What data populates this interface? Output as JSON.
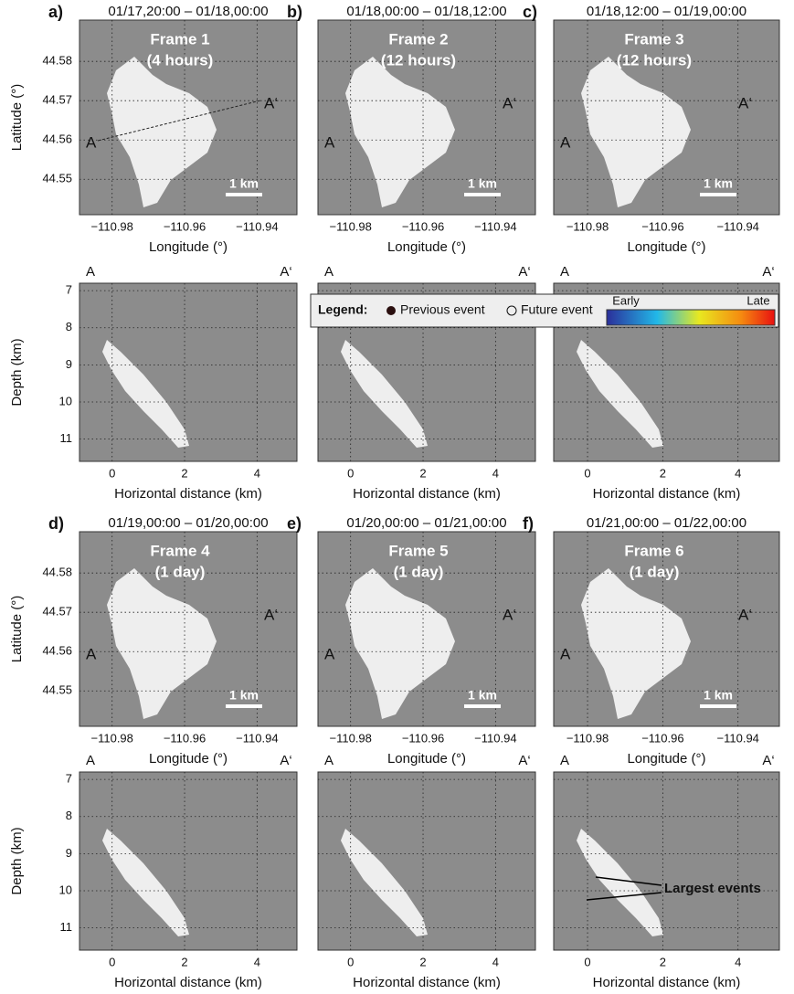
{
  "chart_data": [
    {
      "type": "scatter",
      "panel": "a)",
      "title": "01/17,20:00 – 01/18,00:00",
      "frame": "Frame 1",
      "duration": "(4 hours)",
      "xlabel": "Longitude (°)",
      "ylabel": "Latitude (°)",
      "xlim": [
        -110.989,
        -110.929
      ],
      "ylim": [
        44.541,
        44.5905
      ],
      "xticks": [
        {
          "value": -110.98,
          "label": "−110.98"
        },
        {
          "value": -110.96,
          "label": "−110.96"
        },
        {
          "value": -110.94,
          "label": "−110.94"
        }
      ],
      "yticks": [
        44.55,
        44.56,
        44.57,
        44.58
      ],
      "ytick_labels": true,
      "scale_bar": "1 km",
      "section_labels": [
        "A",
        "A‘"
      ]
    },
    {
      "type": "scatter",
      "panel": "b)",
      "title": "01/18,00:00 – 01/18,12:00",
      "frame": "Frame 2",
      "duration": "(12 hours)",
      "xlabel": "Longitude (°)",
      "xlim": [
        -110.989,
        -110.929
      ],
      "ylim": [
        44.541,
        44.5905
      ],
      "xticks": [
        {
          "value": -110.98,
          "label": "−110.98"
        },
        {
          "value": -110.96,
          "label": "−110.96"
        },
        {
          "value": -110.94,
          "label": "−110.94"
        }
      ],
      "yticks": [
        44.55,
        44.56,
        44.57,
        44.58
      ],
      "ytick_labels": false,
      "scale_bar": "1 km",
      "section_labels": [
        "A",
        "A‘"
      ]
    },
    {
      "type": "scatter",
      "panel": "c)",
      "title": "01/18,12:00 – 01/19,00:00",
      "frame": "Frame 3",
      "duration": "(12 hours)",
      "xlabel": "Longitude (°)",
      "xlim": [
        -110.989,
        -110.929
      ],
      "ylim": [
        44.541,
        44.5905
      ],
      "xticks": [
        {
          "value": -110.98,
          "label": "−110.98"
        },
        {
          "value": -110.96,
          "label": "−110.96"
        },
        {
          "value": -110.94,
          "label": "−110.94"
        }
      ],
      "yticks": [
        44.55,
        44.56,
        44.57,
        44.58
      ],
      "ytick_labels": false,
      "scale_bar": "1 km",
      "section_labels": [
        "A",
        "A‘"
      ]
    },
    {
      "type": "scatter",
      "xlabel": "Horizontal distance (km)",
      "ylabel": "Depth (km)",
      "xlim": [
        -0.9,
        5.1
      ],
      "ylim": [
        11.6,
        6.8
      ],
      "xticks": [
        0,
        2,
        4
      ],
      "yticks": [
        7,
        8,
        9,
        10,
        11
      ],
      "ytick_labels": true,
      "section_labels": [
        "A",
        "A‘"
      ]
    },
    {
      "type": "scatter",
      "xlabel": "Horizontal distance (km)",
      "xlim": [
        -0.9,
        5.1
      ],
      "ylim": [
        11.6,
        6.8
      ],
      "xticks": [
        0,
        2,
        4
      ],
      "yticks": [
        7,
        8,
        9,
        10,
        11
      ],
      "ytick_labels": false,
      "section_labels": [
        "A",
        "A‘"
      ]
    },
    {
      "type": "scatter",
      "xlabel": "Horizontal distance (km)",
      "xlim": [
        -0.9,
        5.1
      ],
      "ylim": [
        11.6,
        6.8
      ],
      "xticks": [
        0,
        2,
        4
      ],
      "yticks": [
        7,
        8,
        9,
        10,
        11
      ],
      "ytick_labels": false,
      "section_labels": [
        "A",
        "A‘"
      ]
    },
    {
      "type": "scatter",
      "panel": "d)",
      "title": "01/19,00:00 – 01/20,00:00",
      "frame": "Frame 4",
      "duration": "(1 day)",
      "xlabel": "Longitude (°)",
      "ylabel": "Latitude (°)",
      "xlim": [
        -110.989,
        -110.929
      ],
      "ylim": [
        44.541,
        44.5905
      ],
      "xticks": [
        {
          "value": -110.98,
          "label": "−110.98"
        },
        {
          "value": -110.96,
          "label": "−110.96"
        },
        {
          "value": -110.94,
          "label": "−110.94"
        }
      ],
      "yticks": [
        44.55,
        44.56,
        44.57,
        44.58
      ],
      "ytick_labels": true,
      "scale_bar": "1 km",
      "section_labels": [
        "A",
        "A‘"
      ]
    },
    {
      "type": "scatter",
      "panel": "e)",
      "title": "01/20,00:00 – 01/21,00:00",
      "frame": "Frame 5",
      "duration": "(1 day)",
      "xlabel": "Longitude (°)",
      "xlim": [
        -110.989,
        -110.929
      ],
      "ylim": [
        44.541,
        44.5905
      ],
      "xticks": [
        {
          "value": -110.98,
          "label": "−110.98"
        },
        {
          "value": -110.96,
          "label": "−110.96"
        },
        {
          "value": -110.94,
          "label": "−110.94"
        }
      ],
      "yticks": [
        44.55,
        44.56,
        44.57,
        44.58
      ],
      "ytick_labels": false,
      "scale_bar": "1 km",
      "section_labels": [
        "A",
        "A‘"
      ]
    },
    {
      "type": "scatter",
      "panel": "f)",
      "title": "01/21,00:00 – 01/22,00:00",
      "frame": "Frame 6",
      "duration": "(1 day)",
      "xlabel": "Longitude (°)",
      "xlim": [
        -110.989,
        -110.929
      ],
      "ylim": [
        44.541,
        44.5905
      ],
      "xticks": [
        {
          "value": -110.98,
          "label": "−110.98"
        },
        {
          "value": -110.96,
          "label": "−110.96"
        },
        {
          "value": -110.94,
          "label": "−110.94"
        }
      ],
      "yticks": [
        44.55,
        44.56,
        44.57,
        44.58
      ],
      "ytick_labels": false,
      "scale_bar": "1 km",
      "section_labels": [
        "A",
        "A‘"
      ]
    },
    {
      "type": "scatter",
      "xlabel": "Horizontal distance (km)",
      "ylabel": "Depth (km)",
      "xlim": [
        -0.9,
        5.1
      ],
      "ylim": [
        11.6,
        6.8
      ],
      "xticks": [
        0,
        2,
        4
      ],
      "yticks": [
        7,
        8,
        9,
        10,
        11
      ],
      "ytick_labels": true,
      "section_labels": [
        "A",
        "A‘"
      ]
    },
    {
      "type": "scatter",
      "xlabel": "Horizontal distance (km)",
      "xlim": [
        -0.9,
        5.1
      ],
      "ylim": [
        11.6,
        6.8
      ],
      "xticks": [
        0,
        2,
        4
      ],
      "yticks": [
        7,
        8,
        9,
        10,
        11
      ],
      "ytick_labels": false,
      "section_labels": [
        "A",
        "A‘"
      ]
    },
    {
      "type": "scatter",
      "xlabel": "Horizontal distance (km)",
      "xlim": [
        -0.9,
        5.1
      ],
      "ylim": [
        11.6,
        6.8
      ],
      "xticks": [
        0,
        2,
        4
      ],
      "yticks": [
        7,
        8,
        9,
        10,
        11
      ],
      "ytick_labels": false,
      "section_labels": [
        "A",
        "A‘"
      ],
      "annotation": "Largest events"
    }
  ],
  "legend": {
    "title": "Legend:",
    "entries": [
      "Previous event",
      "Future event"
    ],
    "colorbar_labels": [
      "Early",
      "Late"
    ]
  }
}
